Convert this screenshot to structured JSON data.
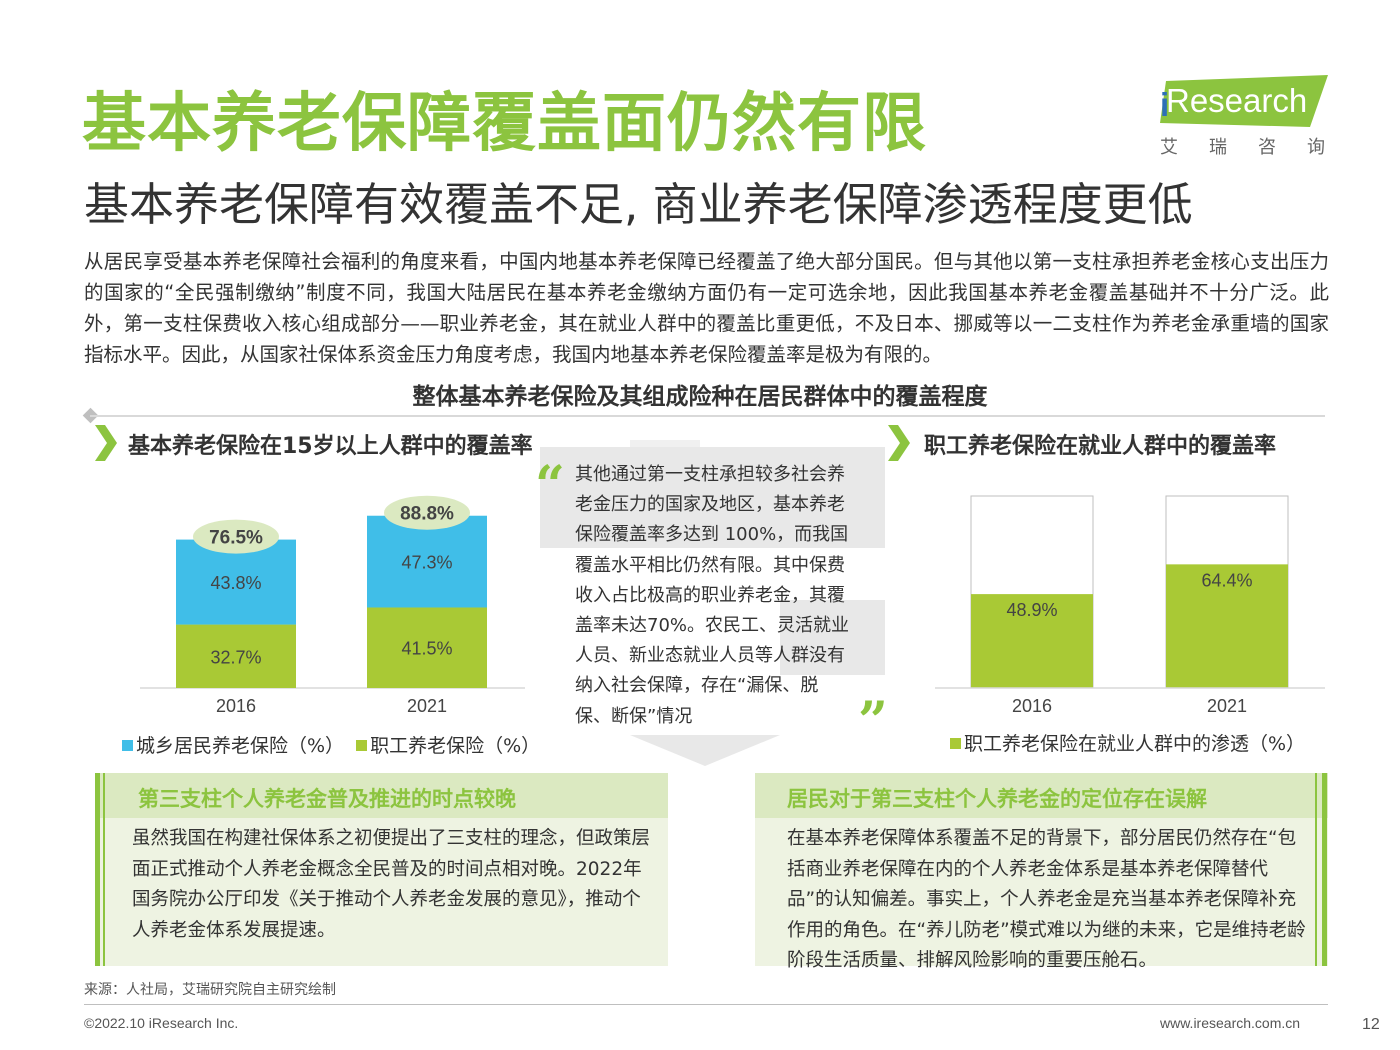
{
  "header": {
    "title": "基本养老保障覆盖面仍然有限",
    "subtitle": "基本养老保障有效覆盖不足, 商业养老保障渗透程度更低",
    "logo_text": "Research",
    "logo_prefix": "i",
    "logo_cn": "艾瑞咨询"
  },
  "intro": "从居民享受基本养老保障社会福利的角度来看，中国内地基本养老保障已经覆盖了绝大部分国民。但与其他以第一支柱承担养老金核心支出压力的国家的“全民强制缴纳”制度不同，我国大陆居民在基本养老金缴纳方面仍有一定可选余地，因此我国基本养老金覆盖基础并不十分广泛。此外，第一支柱保费收入核心组成部分——职业养老金，其在就业人群中的覆盖比重更低，不及日本、挪威等以一二支柱作为养老金承重墙的国家指标水平。因此，从国家社保体系资金压力角度考虑，我国内地基本养老保险覆盖率是极为有限的。",
  "section_title": "整体基本养老保险及其组成险种在居民群体中的覆盖程度",
  "chart_data": [
    {
      "type": "bar",
      "stacked": true,
      "title": "基本养老保险在15岁以上人群中的覆盖率",
      "categories": [
        "2016",
        "2021"
      ],
      "series": [
        {
          "name": "职工养老保险（%）",
          "values": [
            32.7,
            41.5
          ],
          "labels": [
            "32.7%",
            "41.5%"
          ],
          "color": "#a9c935"
        },
        {
          "name": "城乡居民养老保险（%）",
          "values": [
            43.8,
            47.3
          ],
          "labels": [
            "43.8%",
            "47.3%"
          ],
          "color": "#40bee8"
        }
      ],
      "totals": [
        "76.5%",
        "88.8%"
      ],
      "total_values": [
        76.5,
        88.8
      ],
      "ylim": [
        0,
        100
      ]
    },
    {
      "type": "bar",
      "title": "职工养老保险在就业人群中的覆盖率",
      "categories": [
        "2016",
        "2021"
      ],
      "series": [
        {
          "name": "职工养老保险在就业人群中的渗透（%）",
          "values": [
            48.9,
            64.4
          ],
          "labels": [
            "48.9%",
            "64.4%"
          ],
          "color": "#a9c935"
        }
      ],
      "ylim": [
        0,
        100
      ]
    }
  ],
  "quote": {
    "open_mark": "“",
    "close_mark": "”",
    "text": "其他通过第一支柱承担较多社会养老金压力的国家及地区，基本养老保险覆盖率多达到 100%，而我国覆盖水平相比仍然有限。其中保费收入占比极高的职业养老金，其覆盖率未达70%。农民工、灵活就业人员、新业态就业人员等人群没有纳入社会保障，存在“漏保、脱保、断保”情况"
  },
  "boxes": {
    "left": {
      "title": "第三支柱个人养老金普及推进的时点较晚",
      "text": "虽然我国在构建社保体系之初便提出了三支柱的理念，但政策层面正式推动个人养老金概念全民普及的时间点相对晚。2022年国务院办公厅印发《关于推动个人养老金发展的意见》，推动个人养老金体系发展提速。"
    },
    "right": {
      "title": "居民对于第三支柱个人养老金的定位存在误解",
      "text": "在基本养老保障体系覆盖不足的背景下，部分居民仍然存在“包括商业养老保障在内的个人养老金体系是基本养老保障替代品”的认知偏差。事实上，个人养老金是充当基本养老保障补充作用的角色。在“养儿防老”模式难以为继的未来，它是维持老龄阶段生活质量、排解风险影响的重要压舱石。"
    }
  },
  "footer": {
    "source": "来源：人社局，艾瑞研究院自主研究绘制",
    "copyright": "©2022.10 iResearch Inc.",
    "website": "www.iresearch.com.cn",
    "page": "12"
  }
}
